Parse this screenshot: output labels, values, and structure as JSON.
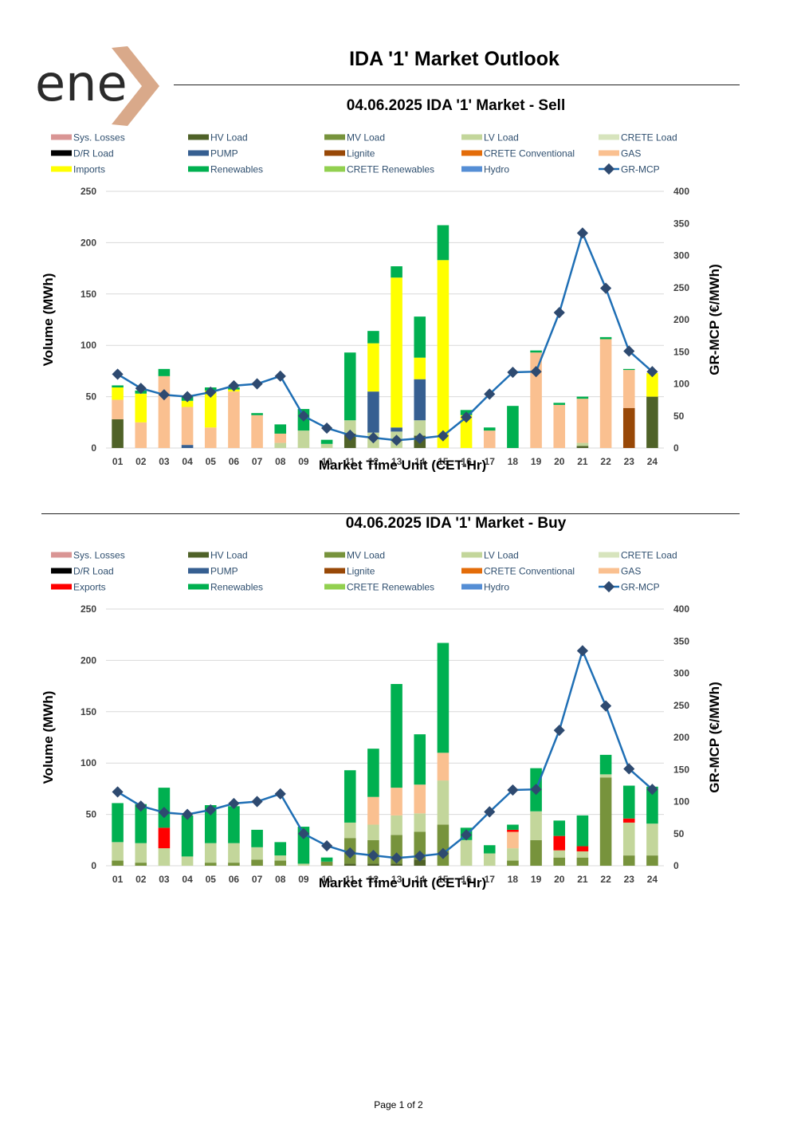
{
  "brand": {
    "logo_text": "ene",
    "logo_colors": {
      "text": "#2b2b2b",
      "x": "#d9a98a"
    }
  },
  "page_title": "IDA '1' Market Outlook",
  "footer": {
    "page_label": "Page 1 of 2"
  },
  "chart_data": [
    {
      "type": "bar",
      "stacked": true,
      "title": "04.06.2025  IDA '1' Market - Sell",
      "xlabel": "Market Time Unit (CET-Hr)",
      "ylabel": "Volume (MWh)",
      "y2label": "GR-MCP (€/MWh)",
      "ylim": [
        0,
        250
      ],
      "yticks": [
        0,
        50,
        100,
        150,
        200,
        250
      ],
      "y2lim": [
        0,
        400
      ],
      "y2ticks": [
        0,
        50,
        100,
        150,
        200,
        250,
        300,
        350,
        400
      ],
      "grid": true,
      "legend_position": "top",
      "categories": [
        "01",
        "02",
        "03",
        "04",
        "05",
        "06",
        "07",
        "08",
        "09",
        "10",
        "11",
        "12",
        "13",
        "14",
        "15",
        "16",
        "17",
        "18",
        "19",
        "20",
        "21",
        "22",
        "23",
        "24"
      ],
      "legend": [
        {
          "name": "Sys. Losses",
          "color": "#d99594",
          "kind": "bar"
        },
        {
          "name": "HV Load",
          "color": "#4f6228",
          "kind": "bar"
        },
        {
          "name": "MV Load",
          "color": "#77933c",
          "kind": "bar"
        },
        {
          "name": "LV Load",
          "color": "#c3d69b",
          "kind": "bar"
        },
        {
          "name": "CRETE Load",
          "color": "#d7e4bd",
          "kind": "bar"
        },
        {
          "name": "D/R Load",
          "color": "#000000",
          "kind": "bar"
        },
        {
          "name": "PUMP",
          "color": "#365f91",
          "kind": "bar"
        },
        {
          "name": "Lignite",
          "color": "#984807",
          "kind": "bar"
        },
        {
          "name": "CRETE Conventional",
          "color": "#e36c09",
          "kind": "bar"
        },
        {
          "name": "GAS",
          "color": "#fac090",
          "kind": "bar"
        },
        {
          "name": "Imports",
          "color": "#ffff00",
          "kind": "bar"
        },
        {
          "name": "Renewables",
          "color": "#00b050",
          "kind": "bar"
        },
        {
          "name": "CRETE Renewables",
          "color": "#92d050",
          "kind": "bar"
        },
        {
          "name": "Hydro",
          "color": "#558ed5",
          "kind": "bar"
        },
        {
          "name": "GR-MCP",
          "color": "#1f6fb5",
          "kind": "line"
        }
      ],
      "series": [
        {
          "name": "HV Load",
          "color": "#4f6228",
          "values": [
            28,
            0,
            0,
            0,
            0,
            0,
            0,
            0,
            0,
            0,
            14,
            0,
            0,
            12,
            0,
            0,
            0,
            0,
            0,
            0,
            2,
            0,
            0,
            50
          ]
        },
        {
          "name": "LV Load",
          "color": "#c3d69b",
          "values": [
            0,
            0,
            0,
            0,
            0,
            0,
            0,
            5,
            17,
            4,
            13,
            15,
            16,
            15,
            0,
            0,
            0,
            0,
            0,
            0,
            3,
            0,
            0,
            0
          ]
        },
        {
          "name": "PUMP",
          "color": "#365f91",
          "values": [
            0,
            0,
            0,
            3,
            0,
            0,
            0,
            0,
            0,
            0,
            0,
            40,
            4,
            40,
            0,
            0,
            0,
            0,
            0,
            0,
            0,
            0,
            0,
            0
          ]
        },
        {
          "name": "Lignite",
          "color": "#984807",
          "values": [
            0,
            0,
            0,
            0,
            0,
            0,
            0,
            0,
            0,
            0,
            0,
            0,
            0,
            0,
            0,
            0,
            0,
            0,
            0,
            0,
            0,
            0,
            39,
            0
          ]
        },
        {
          "name": "GAS",
          "color": "#fac090",
          "values": [
            19,
            25,
            70,
            37,
            20,
            55,
            32,
            9,
            0,
            0,
            0,
            0,
            0,
            0,
            0,
            0,
            17,
            0,
            93,
            42,
            43,
            106,
            37,
            0
          ]
        },
        {
          "name": "Imports",
          "color": "#ffff00",
          "values": [
            12,
            28,
            0,
            6,
            36,
            2,
            0,
            0,
            0,
            0,
            0,
            47,
            146,
            21,
            183,
            32,
            0,
            0,
            0,
            0,
            0,
            0,
            0,
            23
          ]
        },
        {
          "name": "Renewables",
          "color": "#00b050",
          "values": [
            2,
            3,
            7,
            5,
            3,
            2,
            2,
            9,
            21,
            4,
            66,
            12,
            11,
            40,
            34,
            5,
            3,
            41,
            2,
            2,
            2,
            2,
            1,
            0
          ]
        }
      ],
      "line": {
        "name": "GR-MCP",
        "color": "#1f6fb5",
        "values": [
          115,
          93,
          83,
          80,
          87,
          97,
          100,
          112,
          50,
          31,
          20,
          16,
          12,
          15,
          19,
          48,
          84,
          118,
          119,
          211,
          335,
          249,
          151,
          119
        ]
      }
    },
    {
      "type": "bar",
      "stacked": true,
      "title": "04.06.2025  IDA '1' Market - Buy",
      "xlabel": "Market Time Unit (CET-Hr)",
      "ylabel": "Volume (MWh)",
      "y2label": "GR-MCP (€/MWh)",
      "ylim": [
        0,
        250
      ],
      "yticks": [
        0,
        50,
        100,
        150,
        200,
        250
      ],
      "y2lim": [
        0,
        400
      ],
      "y2ticks": [
        0,
        50,
        100,
        150,
        200,
        250,
        300,
        350,
        400
      ],
      "grid": true,
      "legend_position": "top",
      "categories": [
        "01",
        "02",
        "03",
        "04",
        "05",
        "06",
        "07",
        "08",
        "09",
        "10",
        "11",
        "12",
        "13",
        "14",
        "15",
        "16",
        "17",
        "18",
        "19",
        "20",
        "21",
        "22",
        "23",
        "24"
      ],
      "legend": [
        {
          "name": "Sys. Losses",
          "color": "#d99594",
          "kind": "bar"
        },
        {
          "name": "HV Load",
          "color": "#4f6228",
          "kind": "bar"
        },
        {
          "name": "MV Load",
          "color": "#77933c",
          "kind": "bar"
        },
        {
          "name": "LV Load",
          "color": "#c3d69b",
          "kind": "bar"
        },
        {
          "name": "CRETE Load",
          "color": "#d7e4bd",
          "kind": "bar"
        },
        {
          "name": "D/R Load",
          "color": "#000000",
          "kind": "bar"
        },
        {
          "name": "PUMP",
          "color": "#365f91",
          "kind": "bar"
        },
        {
          "name": "Lignite",
          "color": "#984807",
          "kind": "bar"
        },
        {
          "name": "CRETE Conventional",
          "color": "#e36c09",
          "kind": "bar"
        },
        {
          "name": "GAS",
          "color": "#fac090",
          "kind": "bar"
        },
        {
          "name": "Exports",
          "color": "#ff0000",
          "kind": "bar"
        },
        {
          "name": "Renewables",
          "color": "#00b050",
          "kind": "bar"
        },
        {
          "name": "CRETE Renewables",
          "color": "#92d050",
          "kind": "bar"
        },
        {
          "name": "Hydro",
          "color": "#558ed5",
          "kind": "bar"
        },
        {
          "name": "GR-MCP",
          "color": "#1f6fb5",
          "kind": "line"
        }
      ],
      "series": [
        {
          "name": "HV Load",
          "color": "#4f6228",
          "values": [
            0,
            0,
            0,
            0,
            0,
            0,
            0,
            0,
            0,
            0,
            2,
            2,
            2,
            6,
            0,
            0,
            0,
            0,
            0,
            0,
            0,
            0,
            0,
            0
          ]
        },
        {
          "name": "MV Load",
          "color": "#77933c",
          "values": [
            5,
            3,
            0,
            0,
            3,
            3,
            6,
            5,
            0,
            4,
            25,
            23,
            28,
            27,
            40,
            0,
            0,
            5,
            25,
            8,
            8,
            86,
            10,
            10
          ]
        },
        {
          "name": "LV Load",
          "color": "#c3d69b",
          "values": [
            18,
            19,
            17,
            9,
            19,
            19,
            12,
            5,
            2,
            0,
            15,
            15,
            19,
            18,
            43,
            25,
            12,
            12,
            28,
            7,
            6,
            3,
            32,
            31
          ]
        },
        {
          "name": "GAS",
          "color": "#fac090",
          "values": [
            0,
            0,
            0,
            0,
            0,
            0,
            0,
            0,
            0,
            0,
            0,
            27,
            27,
            28,
            27,
            0,
            0,
            16,
            0,
            0,
            0,
            0,
            0,
            0
          ]
        },
        {
          "name": "Exports",
          "color": "#ff0000",
          "values": [
            0,
            0,
            20,
            0,
            0,
            0,
            0,
            0,
            0,
            0,
            0,
            0,
            0,
            0,
            0,
            0,
            0,
            2,
            0,
            14,
            5,
            0,
            4,
            0
          ]
        },
        {
          "name": "Renewables",
          "color": "#00b050",
          "values": [
            38,
            38,
            39,
            40,
            37,
            36,
            17,
            13,
            36,
            4,
            51,
            47,
            101,
            49,
            107,
            12,
            8,
            5,
            42,
            15,
            30,
            19,
            32,
            36
          ]
        }
      ],
      "line": {
        "name": "GR-MCP",
        "color": "#1f6fb5",
        "values": [
          115,
          93,
          83,
          80,
          87,
          97,
          100,
          112,
          50,
          31,
          20,
          16,
          12,
          15,
          19,
          48,
          84,
          118,
          119,
          211,
          335,
          249,
          151,
          119
        ]
      }
    }
  ]
}
